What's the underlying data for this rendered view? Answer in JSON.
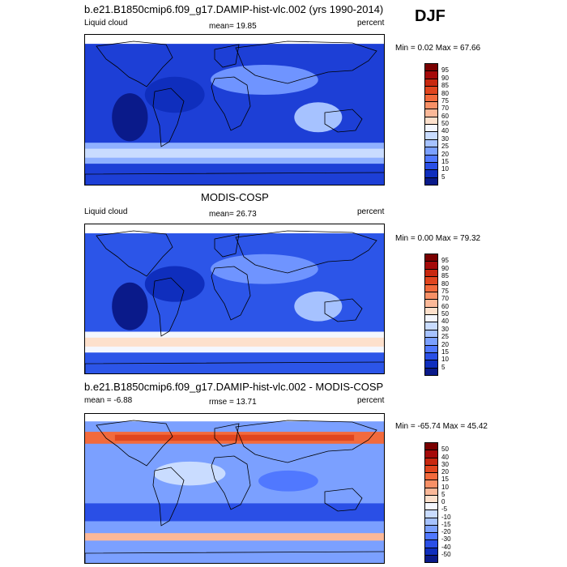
{
  "season": "DJF",
  "panels": [
    {
      "title": "b.e21.B1850cmip6.f09_g17.DAMIP-hist-vlc.002 (yrs 1990-2014)",
      "left_label": "Liquid cloud",
      "center_label": "mean=  19.85",
      "right_label": "percent",
      "minmax": "Min =   0.02 Max =  67.66",
      "kind": "abs"
    },
    {
      "title": "MODIS-COSP",
      "left_label": "Liquid cloud",
      "center_label": "mean=  26.73",
      "right_label": "percent",
      "minmax": "Min =   0.00 Max =  79.32",
      "kind": "abs"
    },
    {
      "title": "b.e21.B1850cmip6.f09_g17.DAMIP-hist-vlc.002 - MODIS-COSP",
      "left_label": "mean =  -6.88",
      "center_label": "rmse =  13.71",
      "right_label": "percent",
      "minmax": "Min = -65.74 Max =  45.42",
      "kind": "diff"
    }
  ],
  "colorbars": {
    "abs": {
      "labels": [
        "95",
        "90",
        "85",
        "80",
        "75",
        "70",
        "60",
        "50",
        "40",
        "30",
        "25",
        "20",
        "15",
        "10",
        "5"
      ],
      "colors": [
        "#7a0000",
        "#a50a0a",
        "#c8280f",
        "#e0451e",
        "#f26a3c",
        "#f89066",
        "#fbb898",
        "#fde0cc",
        "#f4f7ff",
        "#c9dcff",
        "#a6c2ff",
        "#7ba0ff",
        "#5078ff",
        "#2a4fe6",
        "#0f2ebd",
        "#0a1a8a"
      ]
    },
    "diff": {
      "labels": [
        "50",
        "40",
        "30",
        "20",
        "15",
        "10",
        "5",
        "0",
        "-5",
        "-10",
        "-15",
        "-20",
        "-30",
        "-40",
        "-50"
      ],
      "colors": [
        "#7a0000",
        "#a50a0a",
        "#c8280f",
        "#e0451e",
        "#f26a3c",
        "#f89066",
        "#fbb898",
        "#fde0cc",
        "#f4f7ff",
        "#c9dcff",
        "#a6c2ff",
        "#7ba0ff",
        "#5078ff",
        "#2a4fe6",
        "#0f2ebd",
        "#0a1a8a"
      ]
    }
  }
}
